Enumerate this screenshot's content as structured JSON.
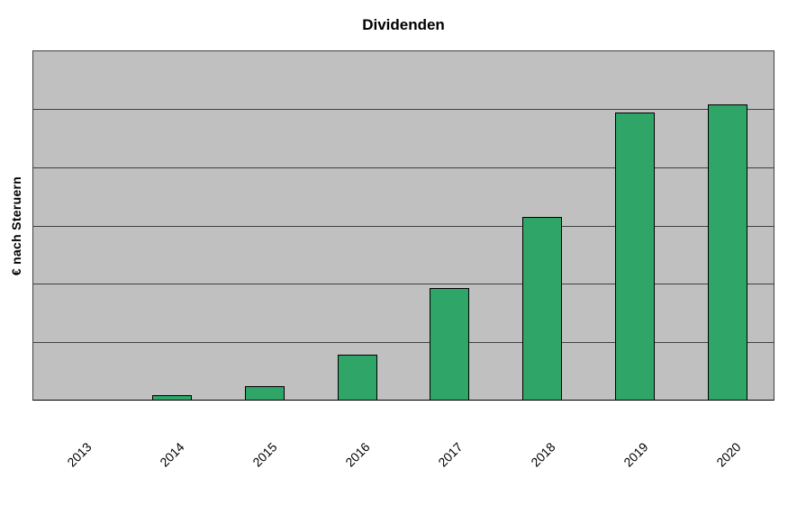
{
  "chart_data": {
    "type": "bar",
    "title": "Dividenden",
    "xlabel": "",
    "ylabel": "€ nach Steruern",
    "categories": [
      "2013",
      "2014",
      "2015",
      "2016",
      "2017",
      "2018",
      "2019",
      "2020"
    ],
    "values": [
      0,
      0.08,
      0.23,
      0.77,
      1.93,
      3.15,
      4.95,
      5.09
    ],
    "ylim": [
      0,
      6
    ],
    "y_tick_labels_visible": false,
    "gridline_count": 6,
    "grid": true,
    "legend": false,
    "colors": {
      "bar_fill": "#2FA568",
      "bar_border": "#000000",
      "plot_background": "#C0C0C0",
      "gridline": "#404040",
      "text": "#000000",
      "page_background": "#FFFFFF"
    }
  }
}
